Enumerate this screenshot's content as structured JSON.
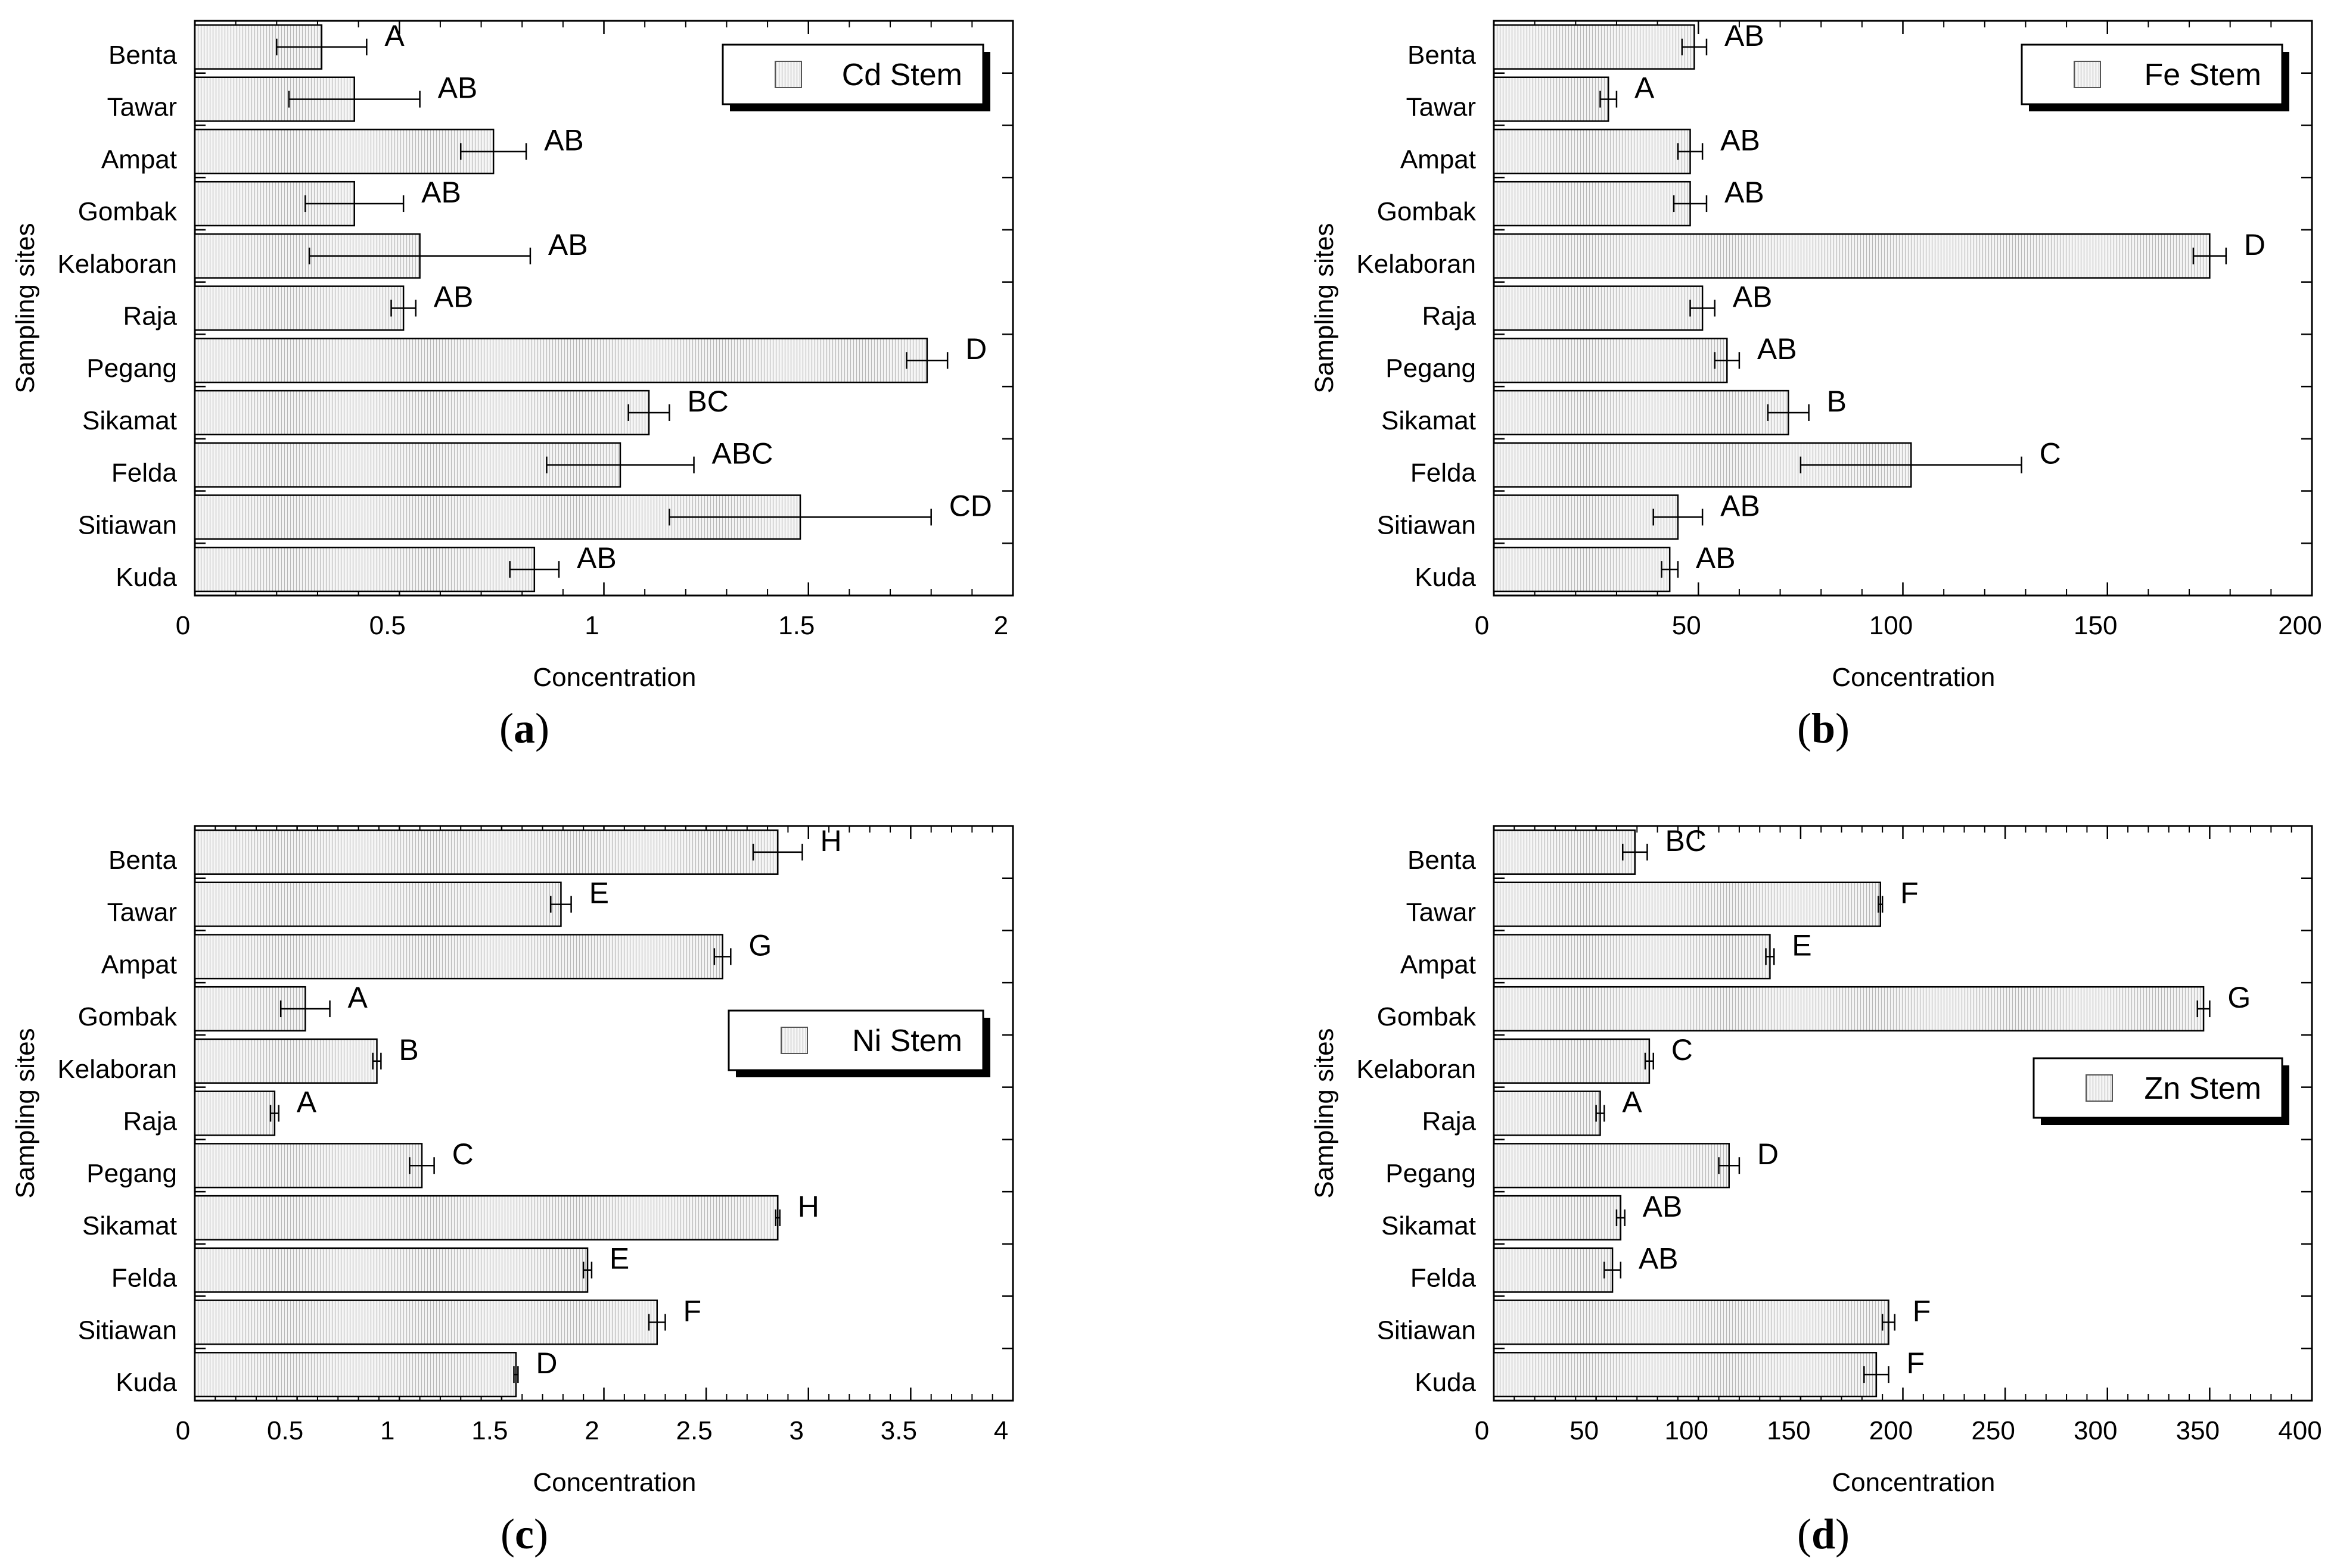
{
  "chart_data": [
    {
      "type": "bar",
      "orientation": "horizontal",
      "panel": "a",
      "legend": "Cd Stem",
      "legend_position": "top-right",
      "xlabel": "Concentration",
      "ylabel": "Sampling sites",
      "xlim": [
        0,
        2
      ],
      "xticks": [
        0,
        0.5,
        1,
        1.5,
        2
      ],
      "xtick_labels": [
        "0",
        "0.5",
        "1",
        "1.5",
        "2"
      ],
      "categories": [
        "Benta",
        "Tawar",
        "Ampat",
        "Gombak",
        "Kelaboran",
        "Raja",
        "Pegang",
        "Sikamat",
        "Felda",
        "Sitiawan",
        "Kuda"
      ],
      "values": [
        0.31,
        0.39,
        0.73,
        0.39,
        0.55,
        0.51,
        1.79,
        1.11,
        1.04,
        1.48,
        0.83
      ],
      "errors": [
        0.11,
        0.16,
        0.08,
        0.12,
        0.27,
        0.03,
        0.05,
        0.05,
        0.18,
        0.32,
        0.06
      ],
      "significance": [
        "A",
        "AB",
        "AB",
        "AB",
        "AB",
        "AB",
        "D",
        "BC",
        "ABC",
        "CD",
        "AB"
      ]
    },
    {
      "type": "bar",
      "orientation": "horizontal",
      "panel": "b",
      "legend": "Fe Stem",
      "legend_position": "top-right",
      "xlabel": "Concentration",
      "ylabel": "Sampling sites",
      "xlim": [
        0,
        200
      ],
      "xticks": [
        0,
        50,
        100,
        150,
        200
      ],
      "xtick_labels": [
        "0",
        "50",
        "100",
        "150",
        "200"
      ],
      "categories": [
        "Benta",
        "Tawar",
        "Ampat",
        "Gombak",
        "Kelaboran",
        "Raja",
        "Pegang",
        "Sikamat",
        "Felda",
        "Sitiawan",
        "Kuda"
      ],
      "values": [
        49,
        28,
        48,
        48,
        175,
        51,
        57,
        72,
        102,
        45,
        43
      ],
      "errors": [
        3,
        2,
        3,
        4,
        4,
        3,
        3,
        5,
        27,
        6,
        2
      ],
      "significance": [
        "AB",
        "A",
        "AB",
        "AB",
        "D",
        "AB",
        "AB",
        "B",
        "C",
        "AB",
        "AB"
      ]
    },
    {
      "type": "bar",
      "orientation": "horizontal",
      "panel": "c",
      "legend": "Ni Stem",
      "legend_position": "middle-right",
      "xlabel": "Concentration",
      "ylabel": "Sampling sites",
      "xlim": [
        0,
        4
      ],
      "xticks": [
        0,
        0.5,
        1,
        1.5,
        2,
        2.5,
        3,
        3.5,
        4
      ],
      "xtick_labels": [
        "0",
        "0.5",
        "1",
        "1.5",
        "2",
        "2.5",
        "3",
        "3.5",
        "4"
      ],
      "categories": [
        "Benta",
        "Tawar",
        "Ampat",
        "Gombak",
        "Kelaboran",
        "Raja",
        "Pegang",
        "Sikamat",
        "Felda",
        "Sitiawan",
        "Kuda"
      ],
      "values": [
        2.85,
        1.79,
        2.58,
        0.54,
        0.89,
        0.39,
        1.11,
        2.85,
        1.92,
        2.26,
        1.57
      ],
      "errors": [
        0.12,
        0.05,
        0.04,
        0.12,
        0.02,
        0.02,
        0.06,
        0.01,
        0.02,
        0.04,
        0.01
      ],
      "significance": [
        "H",
        "E",
        "G",
        "A",
        "B",
        "A",
        "C",
        "H",
        "E",
        "F",
        "D"
      ]
    },
    {
      "type": "bar",
      "orientation": "horizontal",
      "panel": "d",
      "legend": "Zn Stem",
      "legend_position": "middle-right",
      "xlabel": "Concentration",
      "ylabel": "Sampling sites",
      "xlim": [
        0,
        400
      ],
      "xticks": [
        0,
        50,
        100,
        150,
        200,
        250,
        300,
        350,
        400
      ],
      "xtick_labels": [
        "0",
        "50",
        "100",
        "150",
        "200",
        "250",
        "300",
        "350",
        "400"
      ],
      "categories": [
        "Benta",
        "Tawar",
        "Ampat",
        "Gombak",
        "Kelaboran",
        "Raja",
        "Pegang",
        "Sikamat",
        "Felda",
        "Sitiawan",
        "Kuda"
      ],
      "values": [
        69,
        189,
        135,
        347,
        76,
        52,
        115,
        62,
        58,
        193,
        187
      ],
      "errors": [
        6,
        1,
        2,
        3,
        2,
        2,
        5,
        2,
        4,
        3,
        6
      ],
      "significance": [
        "BC",
        "F",
        "E",
        "G",
        "C",
        "A",
        "D",
        "AB",
        "AB",
        "F",
        "F"
      ]
    }
  ],
  "panel_labels": {
    "a": {
      "open": "(",
      "letter": "a",
      "close": ")"
    },
    "b": {
      "open": "(",
      "letter": "b",
      "close": ")"
    },
    "c": {
      "open": "(",
      "letter": "c",
      "close": ")"
    },
    "d": {
      "open": "(",
      "letter": "d",
      "close": ")"
    }
  }
}
